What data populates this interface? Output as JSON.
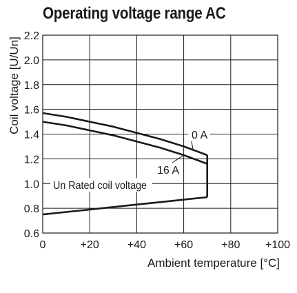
{
  "chart_data": {
    "type": "line",
    "title": "Operating voltage range AC",
    "xlabel": "Ambient temperature [°C]",
    "ylabel": "Coil voltage [U/Un]",
    "xlim": [
      0,
      100
    ],
    "ylim": [
      0.6,
      2.2
    ],
    "x_ticks": [
      0,
      20,
      40,
      60,
      80,
      100
    ],
    "x_tick_labels": [
      "0",
      "+20",
      "+40",
      "+60",
      "+80",
      "+100"
    ],
    "y_ticks": [
      0.6,
      0.8,
      1.0,
      1.2,
      1.4,
      1.6,
      1.8,
      2.0,
      2.2
    ],
    "y_tick_labels": [
      "0.6",
      "0.8",
      "1.0",
      "1.2",
      "1.4",
      "1.6",
      "1.8",
      "2.0",
      "2.2"
    ],
    "grid": true,
    "series": [
      {
        "name": "0 A",
        "x": [
          0,
          10,
          20,
          30,
          40,
          50,
          60,
          70
        ],
        "y": [
          1.57,
          1.54,
          1.5,
          1.46,
          1.41,
          1.36,
          1.3,
          1.23
        ]
      },
      {
        "name": "16 A",
        "x": [
          0,
          10,
          20,
          30,
          40,
          50,
          60,
          70
        ],
        "y": [
          1.5,
          1.47,
          1.43,
          1.39,
          1.34,
          1.29,
          1.23,
          1.16
        ]
      },
      {
        "name": "Un Rated coil voltage",
        "x": [
          0,
          10,
          20,
          30,
          40,
          50,
          60,
          70
        ],
        "y": [
          0.75,
          0.77,
          0.79,
          0.81,
          0.83,
          0.85,
          0.87,
          0.89
        ]
      }
    ],
    "upper_limit_x": 70,
    "annotations": [
      "0 A",
      "16 A",
      "Un Rated coil voltage"
    ]
  }
}
